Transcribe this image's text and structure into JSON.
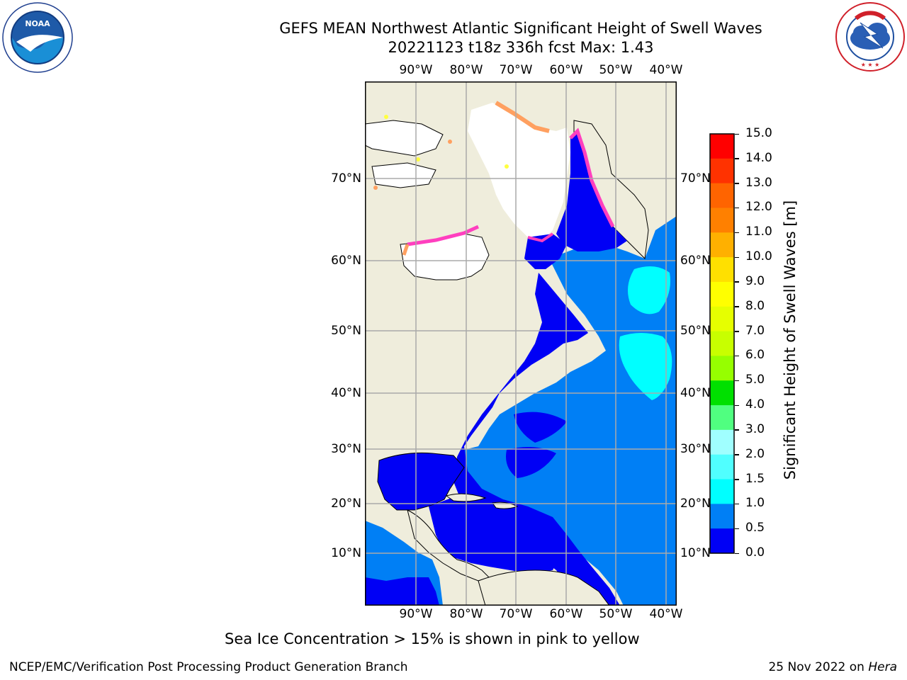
{
  "header": {
    "title_line1": "GEFS MEAN Northwest Atlantic Significant Height of Swell Waves",
    "title_line2": "20221123 t18z 336h fcst   Max: 1.43"
  },
  "logos": {
    "left_name": "NOAA",
    "left_ring_text": "NATIONAL OCEANIC AND ATMOSPHERIC ADMINISTRATION · U.S. DEPARTMENT OF COMMERCE",
    "right_ring_text": "NATIONAL WEATHER SERVICE"
  },
  "map": {
    "lon_labels": [
      "90°W",
      "80°W",
      "70°W",
      "60°W",
      "50°W",
      "40°W"
    ],
    "lat_labels": [
      "70°N",
      "60°N",
      "50°N",
      "40°N",
      "30°N",
      "20°N",
      "10°N"
    ],
    "colors": {
      "land": "#efeddc",
      "ice_free_white": "#ffffff",
      "swell_0_05": "#0000f5",
      "swell_05_10": "#007ff5",
      "swell_10_15": "#00ffff",
      "ice_pink": "#ff3fbf",
      "ice_orange": "#ffa060",
      "ice_yellow": "#ffff40",
      "grid": "#aaaaaa"
    }
  },
  "colorbar": {
    "title": "Significant Height of Swell Waves [m]",
    "tick_labels": [
      "15.0",
      "14.0",
      "13.0",
      "12.0",
      "11.0",
      "10.0",
      "9.0",
      "8.0",
      "7.0",
      "6.0",
      "5.0",
      "4.0",
      "3.0",
      "2.0",
      "1.5",
      "1.0",
      "0.5",
      "0.0"
    ],
    "band_colors": [
      "#ff0000",
      "#ff3200",
      "#ff6400",
      "#ff8000",
      "#ffb000",
      "#ffe000",
      "#ffff00",
      "#e6ff00",
      "#c8ff00",
      "#96ff00",
      "#00e000",
      "#50ff80",
      "#a0ffff",
      "#50ffff",
      "#00ffff",
      "#007ff5",
      "#0000f5"
    ]
  },
  "notes": {
    "sea_ice": "Sea Ice Concentration > 15% is shown in pink to yellow"
  },
  "footer": {
    "left": "NCEP/EMC/Verification Post Processing Product Generation Branch",
    "right_date": "25 Nov 2022 on ",
    "right_host": "Hera"
  }
}
